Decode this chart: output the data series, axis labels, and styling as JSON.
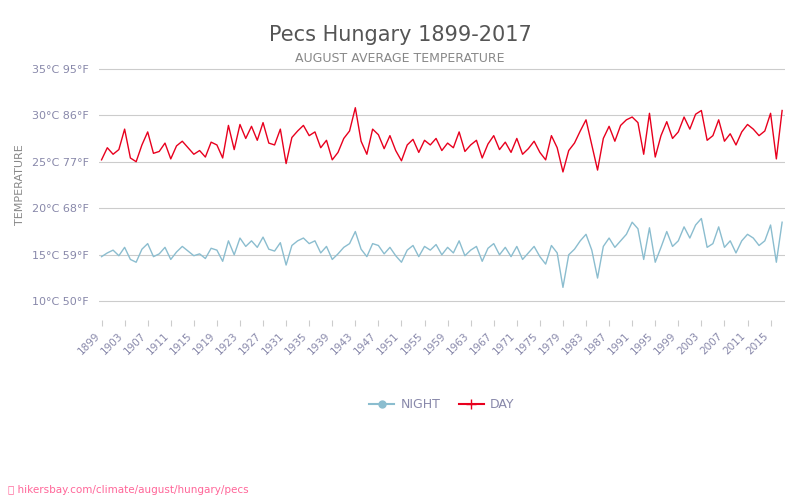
{
  "title": "Pecs Hungary 1899-2017",
  "subtitle": "AUGUST AVERAGE TEMPERATURE",
  "ylabel": "TEMPERATURE",
  "watermark": "hikersbay.com/climate/august/hungary/pecs",
  "years": [
    1899,
    1900,
    1901,
    1902,
    1903,
    1904,
    1905,
    1906,
    1907,
    1908,
    1909,
    1910,
    1911,
    1912,
    1913,
    1914,
    1915,
    1916,
    1917,
    1918,
    1919,
    1920,
    1921,
    1922,
    1923,
    1924,
    1925,
    1926,
    1927,
    1928,
    1929,
    1930,
    1931,
    1932,
    1933,
    1934,
    1935,
    1936,
    1937,
    1938,
    1939,
    1940,
    1941,
    1942,
    1943,
    1944,
    1945,
    1946,
    1947,
    1948,
    1949,
    1950,
    1951,
    1952,
    1953,
    1954,
    1955,
    1956,
    1957,
    1958,
    1959,
    1960,
    1961,
    1962,
    1963,
    1964,
    1965,
    1966,
    1967,
    1968,
    1969,
    1970,
    1971,
    1972,
    1973,
    1974,
    1975,
    1976,
    1977,
    1978,
    1979,
    1980,
    1981,
    1982,
    1983,
    1984,
    1985,
    1986,
    1987,
    1988,
    1989,
    1990,
    1991,
    1992,
    1993,
    1994,
    1995,
    1996,
    1997,
    1998,
    1999,
    2000,
    2001,
    2002,
    2003,
    2004,
    2005,
    2006,
    2007,
    2008,
    2009,
    2010,
    2011,
    2012,
    2013,
    2014,
    2015,
    2016,
    2017
  ],
  "day_temps": [
    25.2,
    26.5,
    25.8,
    26.3,
    28.5,
    25.4,
    25.0,
    26.8,
    28.2,
    25.9,
    26.1,
    27.0,
    25.3,
    26.7,
    27.2,
    26.5,
    25.8,
    26.2,
    25.5,
    27.1,
    26.8,
    25.4,
    28.9,
    26.3,
    29.0,
    27.5,
    28.8,
    27.3,
    29.2,
    27.0,
    26.8,
    28.5,
    24.8,
    27.6,
    28.3,
    28.9,
    27.8,
    28.2,
    26.5,
    27.3,
    25.2,
    26.0,
    27.5,
    28.3,
    30.8,
    27.2,
    25.8,
    28.5,
    27.9,
    26.4,
    27.8,
    26.2,
    25.1,
    26.8,
    27.4,
    26.0,
    27.3,
    26.8,
    27.5,
    26.2,
    27.0,
    26.5,
    28.2,
    26.1,
    26.8,
    27.3,
    25.4,
    26.9,
    27.8,
    26.3,
    27.1,
    26.0,
    27.5,
    25.8,
    26.4,
    27.2,
    26.0,
    25.2,
    27.8,
    26.5,
    23.9,
    26.2,
    27.0,
    28.3,
    29.5,
    26.8,
    24.1,
    27.5,
    28.8,
    27.2,
    28.9,
    29.5,
    29.8,
    29.2,
    25.8,
    30.2,
    25.5,
    27.8,
    29.3,
    27.5,
    28.2,
    29.8,
    28.5,
    30.1,
    30.5,
    27.3,
    27.8,
    29.5,
    27.2,
    28.0,
    26.8,
    28.2,
    29.0,
    28.5,
    27.8,
    28.3,
    30.2,
    25.3,
    30.5
  ],
  "night_temps": [
    14.8,
    15.2,
    15.5,
    14.9,
    15.8,
    14.5,
    14.2,
    15.6,
    16.2,
    14.8,
    15.1,
    15.8,
    14.5,
    15.3,
    15.9,
    15.4,
    14.9,
    15.1,
    14.6,
    15.7,
    15.5,
    14.3,
    16.5,
    15.0,
    16.8,
    15.9,
    16.5,
    15.8,
    16.9,
    15.6,
    15.4,
    16.3,
    13.9,
    16.0,
    16.5,
    16.8,
    16.2,
    16.5,
    15.2,
    15.9,
    14.5,
    15.1,
    15.8,
    16.2,
    17.5,
    15.6,
    14.8,
    16.2,
    16.0,
    15.1,
    15.8,
    14.9,
    14.2,
    15.5,
    16.0,
    14.8,
    15.9,
    15.5,
    16.1,
    15.0,
    15.8,
    15.2,
    16.5,
    14.9,
    15.5,
    15.9,
    14.3,
    15.7,
    16.2,
    15.0,
    15.8,
    14.8,
    15.9,
    14.5,
    15.2,
    15.9,
    14.8,
    14.0,
    16.0,
    15.2,
    11.5,
    15.0,
    15.6,
    16.5,
    17.2,
    15.5,
    12.5,
    15.9,
    16.8,
    15.8,
    16.5,
    17.2,
    18.5,
    17.8,
    14.5,
    17.9,
    14.2,
    15.8,
    17.5,
    15.9,
    16.5,
    18.0,
    16.8,
    18.2,
    18.9,
    15.8,
    16.2,
    18.0,
    15.8,
    16.5,
    15.2,
    16.5,
    17.2,
    16.8,
    16.0,
    16.5,
    18.2,
    14.2,
    18.5
  ],
  "yticks_c": [
    10,
    15,
    20,
    25,
    30,
    35
  ],
  "yticks_f": [
    50,
    59,
    68,
    77,
    86,
    95
  ],
  "ylim": [
    8,
    37
  ],
  "xtick_years": [
    1899,
    1903,
    1907,
    1911,
    1915,
    1919,
    1923,
    1927,
    1931,
    1935,
    1939,
    1943,
    1947,
    1951,
    1955,
    1959,
    1963,
    1967,
    1971,
    1975,
    1979,
    1983,
    1987,
    1991,
    1995,
    1999,
    2003,
    2007,
    2011,
    2015
  ],
  "day_color": "#e8001e",
  "night_color": "#8bbdcf",
  "grid_color": "#cccccc",
  "title_color": "#555555",
  "subtitle_color": "#888888",
  "ylabel_color": "#888888",
  "tick_color": "#8888aa",
  "watermark_color": "#ff6699",
  "background_color": "#ffffff"
}
